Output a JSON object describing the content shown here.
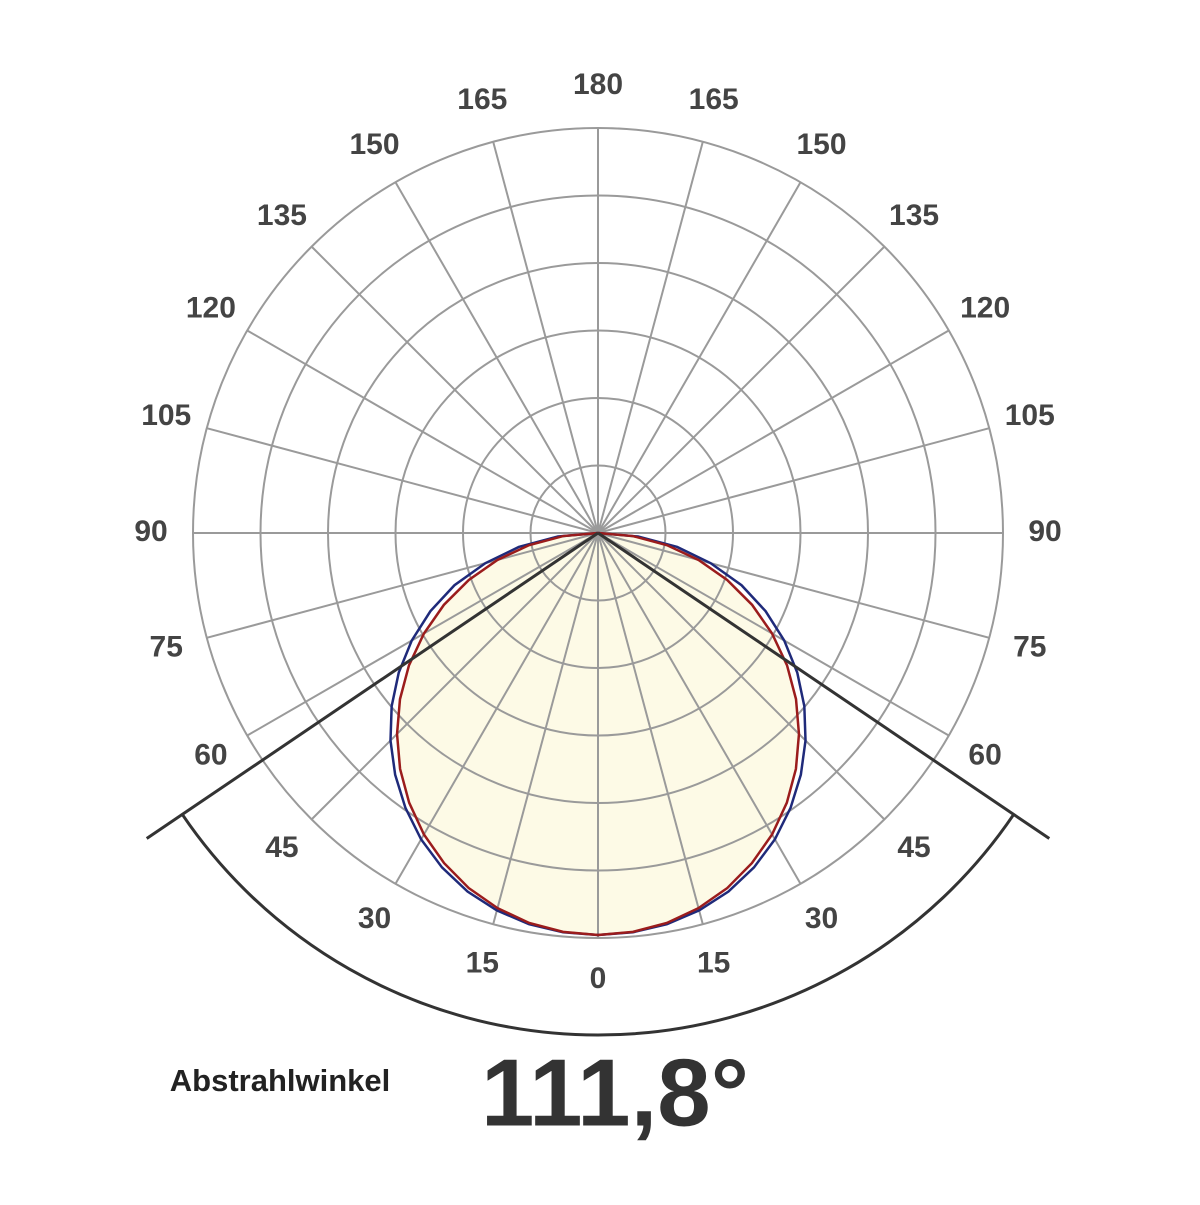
{
  "chart_data": {
    "type": "polar",
    "angle_ticks": [
      0,
      15,
      30,
      45,
      60,
      75,
      90,
      105,
      120,
      135,
      150,
      165,
      180
    ],
    "x": [
      0,
      5,
      10,
      15,
      20,
      25,
      30,
      35,
      40,
      45,
      50,
      55,
      60,
      65,
      70,
      75,
      80,
      85,
      90
    ],
    "series": [
      {
        "color": "#1f2a7a",
        "values": [
          100,
          99.7,
          98.8,
          97.2,
          94.9,
          91.8,
          88,
          83.5,
          78.5,
          73,
          67,
          60.5,
          53.5,
          46,
          38,
          29,
          20,
          10,
          0
        ]
      },
      {
        "color": "#9b1c1c",
        "fill": "#fdfae6",
        "values": [
          100,
          99.6,
          98.5,
          96.6,
          94,
          90.6,
          86.6,
          81.9,
          76.6,
          70.7,
          64.3,
          57.4,
          50,
          42.3,
          34.2,
          25.9,
          17.4,
          8.7,
          0
        ]
      }
    ],
    "rlim": [
      0,
      100
    ],
    "rings": 6,
    "grid": true,
    "beam_angle_title": "Abstrahlwinkel",
    "beam_angle": {
      "value": 111.8,
      "label": "111,8°"
    }
  }
}
